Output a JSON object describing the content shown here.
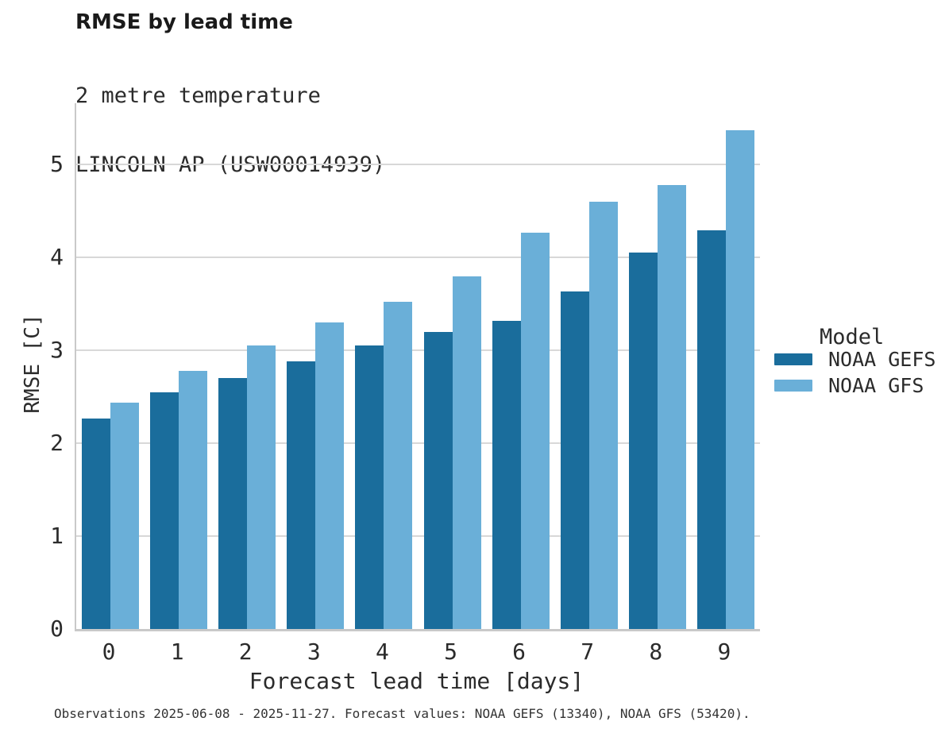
{
  "header": {
    "title": "RMSE by lead time",
    "subtitle_line1": "2 metre temperature",
    "subtitle_line2": "LINCOLN AP (USW00014939)"
  },
  "chart_data": {
    "type": "bar",
    "title": "RMSE by lead time",
    "subtitle": "2 metre temperature",
    "station": "LINCOLN AP (USW00014939)",
    "categories": [
      "0",
      "1",
      "2",
      "3",
      "4",
      "5",
      "6",
      "7",
      "8",
      "9"
    ],
    "series": [
      {
        "name": "NOAA GEFS",
        "color": "#1A6D9C",
        "values": [
          2.27,
          2.55,
          2.7,
          2.88,
          3.05,
          3.2,
          3.32,
          3.63,
          4.05,
          4.29
        ]
      },
      {
        "name": "NOAA GFS",
        "color": "#6AAFD8",
        "values": [
          2.44,
          2.78,
          3.05,
          3.3,
          3.52,
          3.8,
          4.27,
          4.6,
          4.78,
          5.37
        ]
      }
    ],
    "xlabel": "Forecast lead time [days]",
    "ylabel": "RMSE [C]",
    "ylim": [
      0,
      5.66
    ],
    "yticks": [
      0,
      1,
      2,
      3,
      4,
      5
    ],
    "grid": true,
    "legend_title": "Model",
    "legend_position": "right"
  },
  "footnote": "Observations 2025-06-08 - 2025-11-27. Forecast values: NOAA GEFS (13340), NOAA GFS (53420)."
}
